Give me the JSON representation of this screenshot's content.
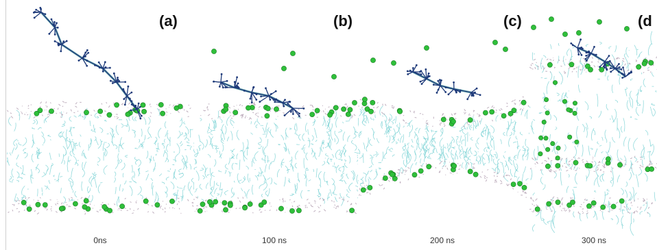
{
  "figure": {
    "panels": [
      {
        "letter": "(a)",
        "time": "0ns"
      },
      {
        "letter": "(b)",
        "time": "100 ns"
      },
      {
        "letter": "(c)",
        "time": "200 ns"
      },
      {
        "letter": "(d",
        "time": "300 ns"
      }
    ],
    "colors": {
      "lipid_tail": "#7fd3d6",
      "head_group": "#b9a7b8",
      "ion": "#2fbf3a",
      "ion_edge": "#1a7d24",
      "peptide": "#1f3b7a",
      "peptide_alt": "#4f9ea1"
    }
  }
}
